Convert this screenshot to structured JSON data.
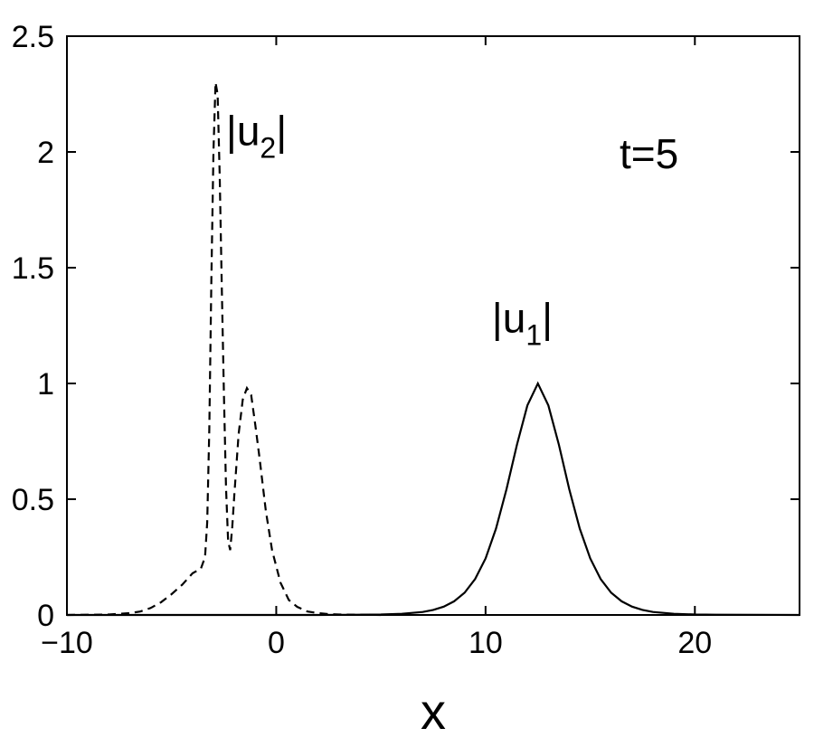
{
  "chart_data": {
    "type": "line",
    "title": "",
    "xlabel": "x",
    "ylabel": "",
    "xlim": [
      -10,
      25
    ],
    "ylim": [
      0,
      2.5
    ],
    "grid": false,
    "x_ticks": [
      -10,
      0,
      10,
      20
    ],
    "x_tick_labels": [
      "−10",
      "0",
      "10",
      "20"
    ],
    "y_ticks": [
      0,
      0.5,
      1,
      1.5,
      2,
      2.5
    ],
    "y_tick_labels": [
      "0",
      "0.5",
      "1",
      "1.5",
      "2",
      "2.5"
    ],
    "annotations": {
      "time": "t=5",
      "u2_label": {
        "left": "|u",
        "sub": "2",
        "right": "|"
      },
      "u1_label": {
        "left": "|u",
        "sub": "1",
        "right": "|"
      }
    },
    "series": [
      {
        "style": "solid",
        "color": "#000000",
        "x": [
          -10,
          0,
          2,
          4,
          5,
          6,
          7,
          7.5,
          8,
          8.5,
          9,
          9.5,
          10,
          10.5,
          11,
          11.5,
          12,
          12.5,
          13,
          13.5,
          14,
          14.5,
          15,
          15.5,
          16,
          16.5,
          17,
          17.5,
          18,
          19,
          20,
          21,
          25
        ],
        "values": [
          0,
          0,
          0,
          0.001,
          0.002,
          0.005,
          0.013,
          0.022,
          0.036,
          0.059,
          0.096,
          0.155,
          0.244,
          0.373,
          0.543,
          0.736,
          0.905,
          1.0,
          0.905,
          0.736,
          0.543,
          0.373,
          0.244,
          0.155,
          0.096,
          0.059,
          0.036,
          0.022,
          0.013,
          0.005,
          0.002,
          0.001,
          0
        ]
      },
      {
        "style": "dashed",
        "color": "#000000",
        "x": [
          -10,
          -8,
          -7,
          -6.5,
          -6,
          -5.5,
          -5,
          -4.5,
          -4,
          -3.6,
          -3.4,
          -3.3,
          -3.2,
          -3.1,
          -3.0,
          -2.9,
          -2.8,
          -2.7,
          -2.6,
          -2.5,
          -2.4,
          -2.3,
          -2.2,
          -2.1,
          -2.0,
          -1.8,
          -1.6,
          -1.4,
          -1.2,
          -1.0,
          -0.8,
          -0.5,
          -0.2,
          0.2,
          0.6,
          1.0,
          1.5,
          2.0,
          2.5,
          3.0,
          5
        ],
        "values": [
          0,
          0.002,
          0.008,
          0.015,
          0.03,
          0.055,
          0.09,
          0.13,
          0.18,
          0.2,
          0.25,
          0.4,
          0.8,
          1.45,
          2.0,
          2.3,
          2.25,
          1.9,
          1.4,
          0.95,
          0.55,
          0.32,
          0.28,
          0.38,
          0.52,
          0.78,
          0.93,
          0.98,
          0.95,
          0.82,
          0.68,
          0.45,
          0.28,
          0.14,
          0.065,
          0.035,
          0.015,
          0.008,
          0.004,
          0.002,
          0
        ]
      }
    ]
  }
}
